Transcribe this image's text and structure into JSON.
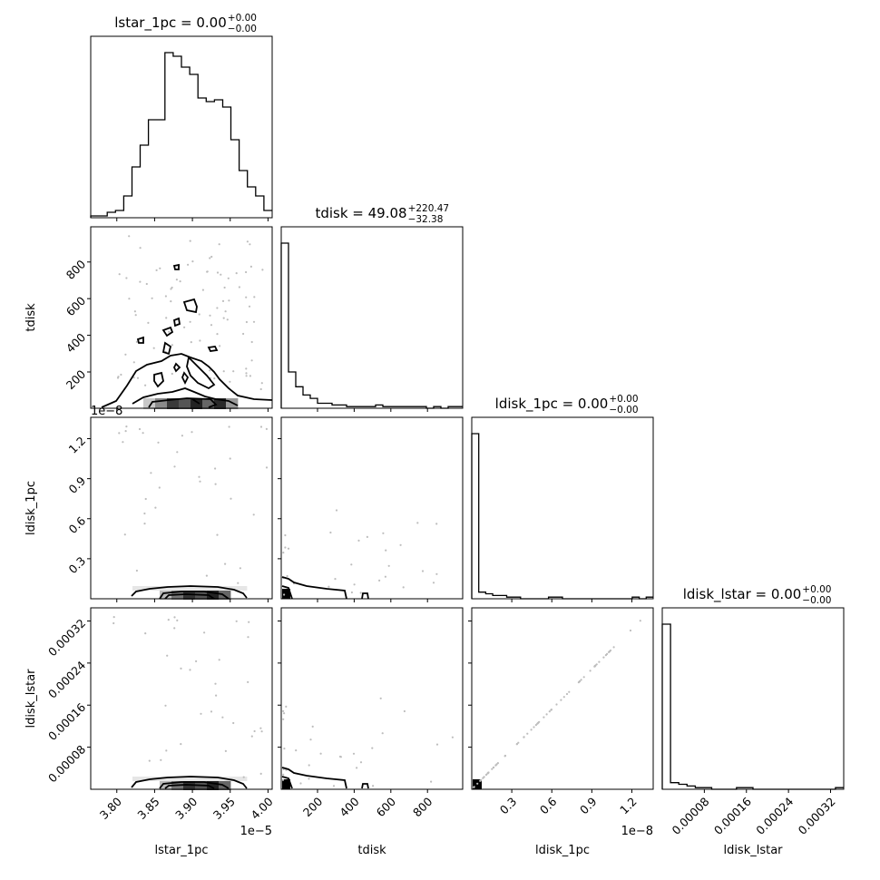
{
  "chart_data": {
    "type": "corner",
    "parameters": [
      "lstar_1pc",
      "tdisk",
      "ldisk_1pc",
      "ldisk_lstar"
    ],
    "titles": [
      {
        "text": "lstar_1pc = 0.00",
        "sup": "+0.00",
        "sub": "−0.00"
      },
      {
        "text": "tdisk = 49.08",
        "sup": "+220.47",
        "sub": "−32.38"
      },
      {
        "text": "ldisk_1pc = 0.00",
        "sup": "+0.00",
        "sub": "−0.00"
      },
      {
        "text": "ldisk_lstar = 0.00",
        "sup": "+0.00",
        "sub": "−0.00"
      }
    ],
    "axis_labels": [
      "lstar_1pc",
      "tdisk",
      "ldisk_1pc",
      "ldisk_lstar"
    ],
    "offset_text": {
      "lstar_1pc": "1e−5",
      "ldisk_1pc_x": "1e−8",
      "ldisk_1pc_y": "1e−8"
    },
    "ranges": {
      "lstar_1pc": [
        3.7655,
        4.0055
      ],
      "tdisk": [
        2,
        992
      ],
      "ldisk_1pc": [
        0,
        1.36
      ],
      "ldisk_lstar": [
        0,
        0.000345
      ]
    },
    "ticks": {
      "lstar_1pc": {
        "values": [
          3.8,
          3.85,
          3.9,
          3.95,
          4.0
        ],
        "labels": [
          "3.80",
          "3.85",
          "3.90",
          "3.95",
          "4.00"
        ]
      },
      "tdisk": {
        "values": [
          200,
          400,
          600,
          800
        ],
        "labels": [
          "200",
          "400",
          "600",
          "800"
        ]
      },
      "ldisk_1pc": {
        "values": [
          0.3,
          0.6,
          0.9,
          1.2
        ],
        "labels": [
          "0.3",
          "0.6",
          "0.9",
          "1.2"
        ]
      },
      "ldisk_lstar": {
        "values": [
          8e-05,
          0.00016,
          0.00024,
          0.00032
        ],
        "labels": [
          "0.00008",
          "0.00016",
          "0.00024",
          "0.00032"
        ]
      }
    },
    "histograms": {
      "lstar_1pc": [
        1,
        1,
        3,
        4,
        12,
        28,
        40,
        54,
        54,
        91,
        89,
        83,
        79,
        66,
        64,
        65,
        61,
        43,
        26,
        17,
        12,
        4
      ],
      "tdisk": [
        100,
        22,
        13,
        8,
        6,
        3,
        3,
        2,
        2,
        1,
        1,
        1,
        1,
        2,
        1,
        1,
        1,
        1,
        1,
        1,
        0,
        1,
        0,
        1,
        1
      ],
      "ldisk_1pc": [
        100,
        4,
        3,
        2,
        2,
        1,
        1,
        0,
        0,
        0,
        0,
        1,
        1,
        0,
        0,
        0,
        0,
        0,
        0,
        0,
        0,
        0,
        0,
        1,
        0,
        1
      ],
      "ldisk_lstar": [
        100,
        4,
        3,
        2,
        1,
        1,
        0,
        0,
        0,
        1,
        1,
        0,
        0,
        0,
        0,
        0,
        0,
        0,
        0,
        0,
        0,
        1
      ]
    },
    "grid": false,
    "legend": "none"
  }
}
